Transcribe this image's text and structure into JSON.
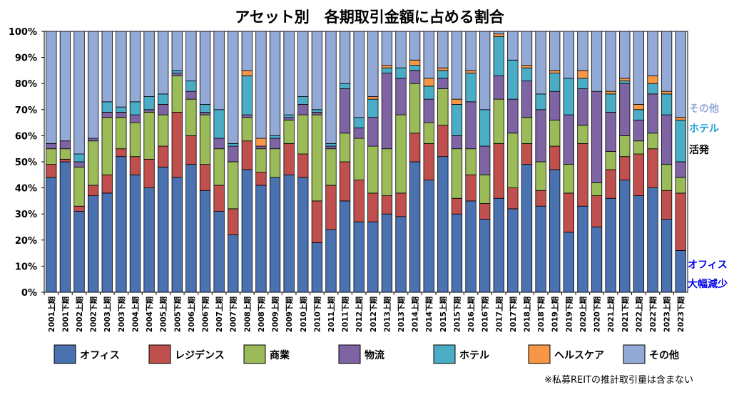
{
  "chart_data": {
    "type": "bar",
    "stacked": true,
    "title": "アセット別　各期取引金額に占める割合",
    "ylim": [
      0,
      100
    ],
    "y_ticks": [
      "0%",
      "10%",
      "20%",
      "30%",
      "40%",
      "50%",
      "60%",
      "70%",
      "80%",
      "90%",
      "100%"
    ],
    "categories": [
      "2001上期",
      "2001下期",
      "2002上期",
      "2002下期",
      "2003上期",
      "2003下期",
      "2004上期",
      "2004下期",
      "2005上期",
      "2005下期",
      "2006上期",
      "2006下期",
      "2007上期",
      "2007下期",
      "2008上期",
      "2008下期",
      "2009上期",
      "2009下期",
      "2010上期",
      "2010下期",
      "2011上期",
      "2011下期",
      "2012上期",
      "2012下期",
      "2013上期",
      "2013下期",
      "2014上期",
      "2014下期",
      "2015上期",
      "2015下期",
      "2016上期",
      "2016下期",
      "2017上期",
      "2017下期",
      "2018上期",
      "2018下期",
      "2019上期",
      "2019下期",
      "2020上期",
      "2020下期",
      "2021上期",
      "2021下期",
      "2022上期",
      "2022下期",
      "2023上期",
      "2023下期"
    ],
    "series": [
      {
        "name": "オフィス",
        "color": "#4A72B0",
        "values": [
          44,
          50,
          31,
          37,
          38,
          52,
          45,
          40,
          48,
          44,
          49,
          39,
          31,
          22,
          47,
          41,
          44,
          45,
          44,
          19,
          24,
          35,
          27,
          27,
          30,
          29,
          50,
          43,
          52,
          30,
          35,
          28,
          36,
          32,
          49,
          33,
          47,
          23,
          33,
          25,
          36,
          43,
          37,
          40,
          28,
          16
        ]
      },
      {
        "name": "レジデンス",
        "color": "#C0504D",
        "values": [
          5,
          1,
          2,
          4,
          7,
          3,
          7,
          11,
          8,
          25,
          11,
          10,
          10,
          10,
          11,
          5,
          0,
          12,
          9,
          16,
          17,
          15,
          16,
          11,
          7,
          9,
          11,
          14,
          12,
          6,
          10,
          6,
          21,
          8,
          8,
          6,
          9,
          15,
          24,
          12,
          11,
          9,
          16,
          15,
          11,
          22
        ]
      },
      {
        "name": "商業",
        "color": "#9BBB59",
        "values": [
          6,
          4,
          15,
          17,
          22,
          12,
          13,
          18,
          12,
          14,
          14,
          19,
          14,
          18,
          9,
          9,
          11,
          9,
          15,
          33,
          14,
          11,
          16,
          18,
          18,
          30,
          19,
          8,
          14,
          19,
          10,
          11,
          17,
          21,
          10,
          11,
          10,
          11,
          7,
          5,
          7,
          8,
          5,
          6,
          10,
          6
        ]
      },
      {
        "name": "物流",
        "color": "#7F64A4",
        "values": [
          2,
          3,
          2,
          1,
          2,
          2,
          3,
          1,
          4,
          1,
          3,
          1,
          4,
          6,
          1,
          1,
          4,
          1,
          4,
          1,
          1,
          17,
          4,
          11,
          29,
          14,
          5,
          9,
          4,
          5,
          18,
          11,
          9,
          13,
          14,
          20,
          11,
          19,
          14,
          35,
          15,
          20,
          8,
          15,
          19,
          6
        ]
      },
      {
        "name": "ホテル",
        "color": "#4BACC6",
        "values": [
          0,
          0,
          3,
          0,
          4,
          2,
          5,
          5,
          4,
          1,
          4,
          3,
          11,
          1,
          15,
          0,
          1,
          1,
          3,
          1,
          1,
          2,
          4,
          7,
          2,
          4,
          2,
          5,
          3,
          12,
          11,
          14,
          15,
          15,
          5,
          6,
          7,
          14,
          4,
          0,
          7,
          1,
          4,
          4,
          8,
          16
        ]
      },
      {
        "name": "ヘルスケア",
        "color": "#F79646",
        "values": [
          0,
          0,
          0,
          0,
          0,
          0,
          0,
          0,
          0,
          0,
          0,
          0,
          0,
          0,
          2,
          3,
          0,
          0,
          0,
          0,
          0,
          0,
          0,
          1,
          1,
          0,
          2,
          3,
          1,
          2,
          1,
          0,
          1,
          0,
          1,
          0,
          1,
          0,
          3,
          0,
          1,
          1,
          2,
          3,
          1,
          1
        ]
      },
      {
        "name": "その他",
        "color": "#93A9D6",
        "values": [
          43,
          42,
          47,
          41,
          27,
          29,
          27,
          25,
          24,
          15,
          19,
          28,
          30,
          43,
          15,
          41,
          40,
          32,
          25,
          30,
          43,
          20,
          33,
          25,
          13,
          14,
          11,
          18,
          14,
          26,
          15,
          30,
          1,
          11,
          13,
          24,
          15,
          18,
          15,
          23,
          23,
          18,
          28,
          17,
          23,
          33
        ]
      }
    ],
    "legend_position": "bottom",
    "legend": [
      "オフィス",
      "レジデンス",
      "商業",
      "物流",
      "ホテル",
      "ヘルスケア",
      "その他"
    ],
    "annotations": [
      {
        "text": "その他",
        "color": "#93A9D6"
      },
      {
        "text": "ホテル",
        "color": "#1F9FD6"
      },
      {
        "text": "活発",
        "color": "#000000"
      },
      {
        "text": "オフィス",
        "color": "#0000EE"
      },
      {
        "text": "大幅減少",
        "color": "#0000EE"
      }
    ],
    "footnote": "※私募REITの推計取引量は含まない",
    "grid": false
  }
}
